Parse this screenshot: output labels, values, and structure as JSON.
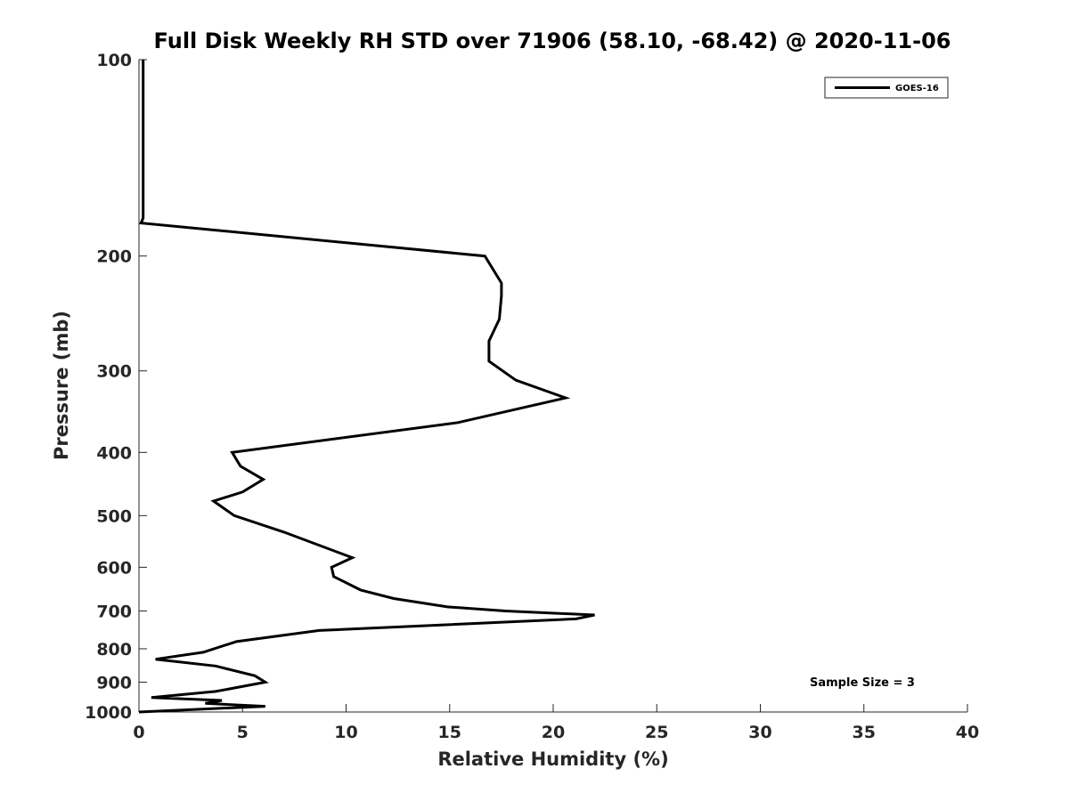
{
  "chart_data": {
    "type": "line",
    "title": "Full Disk Weekly RH STD over 71906 (58.10, -68.42) @ 2020-11-06",
    "xlabel": "Relative Humidity (%)",
    "ylabel": "Pressure (mb)",
    "xlim": [
      0,
      40
    ],
    "ylim": [
      100,
      1000
    ],
    "yscale": "log",
    "y_reversed": true,
    "xticks": [
      "0",
      "5",
      "10",
      "15",
      "20",
      "25",
      "30",
      "35",
      "40"
    ],
    "yticks": [
      "100",
      "200",
      "300",
      "400",
      "500",
      "600",
      "700",
      "800",
      "900",
      "1000"
    ],
    "grid": false,
    "legend_position": "top-right",
    "series": [
      {
        "name": "GOES-16",
        "color": "#000000",
        "x": [
          0.2,
          0.2,
          0.2,
          0.2,
          0.2,
          0.2,
          0.2,
          0.2,
          0.2,
          0.1,
          16.7,
          17.5,
          17.5,
          17.4,
          16.9,
          16.9,
          18.2,
          20.6,
          15.4,
          4.5,
          4.9,
          6.0,
          5.0,
          3.6,
          4.6,
          7.0,
          10.3,
          9.3,
          9.4,
          10.7,
          12.3,
          14.9,
          17.7,
          22.0,
          21.1,
          8.7,
          4.7,
          3.1,
          0.8,
          3.7,
          5.6,
          6.1,
          3.7,
          0.6,
          4.0,
          3.2,
          6.1,
          0.0
        ],
        "y": [
          100,
          110,
          120,
          130,
          140,
          150,
          160,
          170,
          175,
          178,
          200,
          220,
          230,
          250,
          270,
          290,
          310,
          330,
          360,
          400,
          420,
          440,
          460,
          475,
          500,
          530,
          580,
          600,
          620,
          650,
          670,
          690,
          700,
          710,
          720,
          750,
          780,
          810,
          830,
          850,
          880,
          900,
          930,
          950,
          960,
          970,
          980,
          1000
        ]
      }
    ],
    "annotations": [
      "Sample Size = 3"
    ]
  }
}
